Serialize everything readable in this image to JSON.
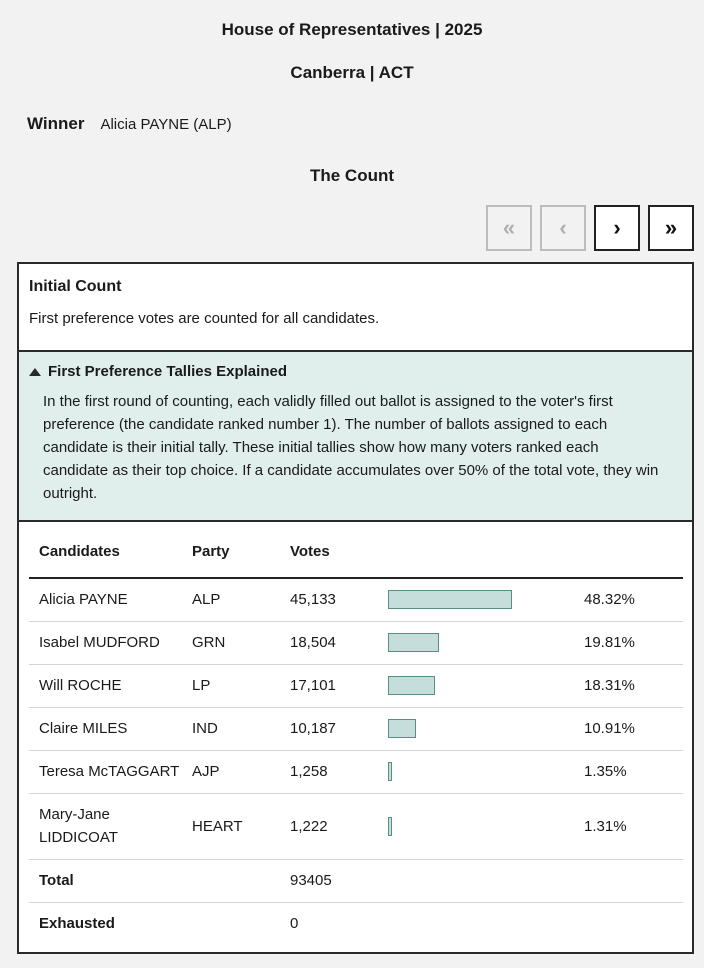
{
  "header": {
    "election": "House of Representatives | 2025",
    "division": "Canberra | ACT",
    "winner_label": "Winner",
    "winner_value": "Alicia PAYNE (ALP)",
    "section_title": "The Count"
  },
  "nav": {
    "first": "«",
    "prev": "‹",
    "next": "›",
    "last": "»"
  },
  "panel": {
    "title": "Initial Count",
    "subtitle": "First preference votes are counted for all candidates.",
    "explain_title": "First Preference Tallies Explained",
    "explain_text": "In the first round of counting, each validly filled out ballot is assigned to the voter's first preference (the candidate ranked number 1). The number of ballots assigned to each candidate is their initial tally. These initial tallies show how many voters ranked each candidate as their top choice. If a candidate accumulates over 50% of the total vote, they win outright."
  },
  "table": {
    "headers": [
      "Candidates",
      "Party",
      "Votes"
    ],
    "rows": [
      {
        "name": "Alicia PAYNE",
        "party": "ALP",
        "votes": "45,133",
        "pct": "48.32%",
        "share": 48.32
      },
      {
        "name": "Isabel MUDFORD",
        "party": "GRN",
        "votes": "18,504",
        "pct": "19.81%",
        "share": 19.81
      },
      {
        "name": "Will ROCHE",
        "party": "LP",
        "votes": "17,101",
        "pct": "18.31%",
        "share": 18.31
      },
      {
        "name": "Claire MILES",
        "party": "IND",
        "votes": "10,187",
        "pct": "10.91%",
        "share": 10.91
      },
      {
        "name": "Teresa McTAGGART",
        "party": "AJP",
        "votes": "1,258",
        "pct": "1.35%",
        "share": 1.35
      },
      {
        "name": "Mary-Jane LIDDICOAT",
        "party": "HEART",
        "votes": "1,222",
        "pct": "1.31%",
        "share": 1.31
      }
    ],
    "total_label": "Total",
    "total_value": "93405",
    "exhausted_label": "Exhausted",
    "exhausted_value": "0"
  },
  "colors": {
    "bar_fill": "#c6dedb",
    "bar_border": "#5a8d86",
    "explain_bg": "#e1efec"
  }
}
